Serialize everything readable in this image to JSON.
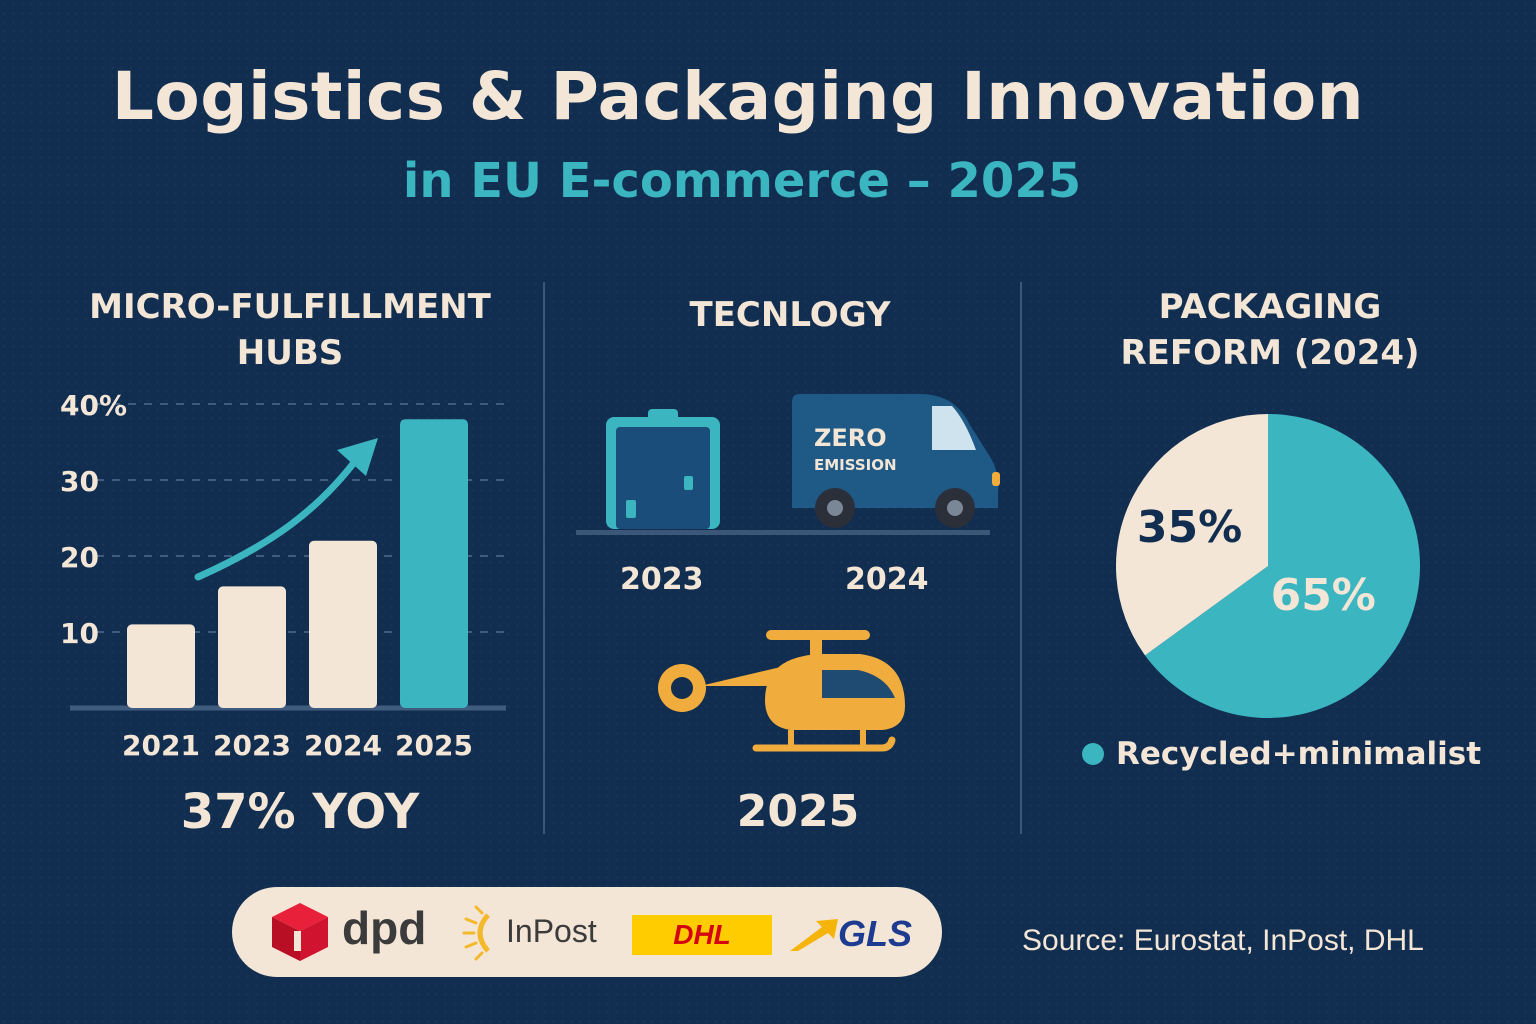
{
  "title": "Logistics & Packaging Innovation",
  "subtitle": "in EU E-commerce – 2025",
  "panels": {
    "hubs": {
      "title_line1": "MICRO-FULFILLMENT",
      "title_line2": "HUBS",
      "headline": "37% YOY"
    },
    "technology": {
      "title": "TECNLOGY",
      "van_text_line1": "ZERO",
      "van_text_line2": "EMISSION",
      "years": [
        "2023",
        "2024",
        "2025"
      ],
      "icons": [
        "parcel-locker-icon",
        "delivery-van-icon",
        "helicopter-icon"
      ]
    },
    "packaging": {
      "title_line1": "PACKAGING",
      "title_line2": "REFORM (2024)",
      "legend_label": "Recycled+minimalist"
    }
  },
  "logos": [
    "dpd",
    "InPost",
    "DHL",
    "GLS"
  ],
  "source": "Source: Eurostat, InPost, DHL",
  "colors": {
    "background": "#112d4f",
    "cream": "#f3e6d6",
    "teal": "#3bb5c0",
    "amber": "#f0ac3c",
    "dpd_red": "#d0142f",
    "dhl_yellow": "#ffcc00",
    "dhl_red": "#d40511",
    "gls_blue": "#1d3c91"
  },
  "chart_data": [
    {
      "type": "bar",
      "categories": [
        "2021",
        "2023",
        "2024",
        "2025"
      ],
      "values": [
        11,
        16,
        22,
        38
      ],
      "highlight_index": 3,
      "y_ticks": [
        "10",
        "20",
        "30",
        "40%"
      ],
      "ylim": [
        0,
        40
      ],
      "grid": true,
      "trend_arrow": true
    },
    {
      "type": "pie",
      "slices": [
        {
          "label": "65%",
          "value": 65,
          "color": "#3bb5c0"
        },
        {
          "label": "35%",
          "value": 35,
          "color": "#f3e6d6"
        }
      ],
      "legend": [
        "Recycled+minimalist"
      ],
      "legend_position": "bottom"
    }
  ]
}
